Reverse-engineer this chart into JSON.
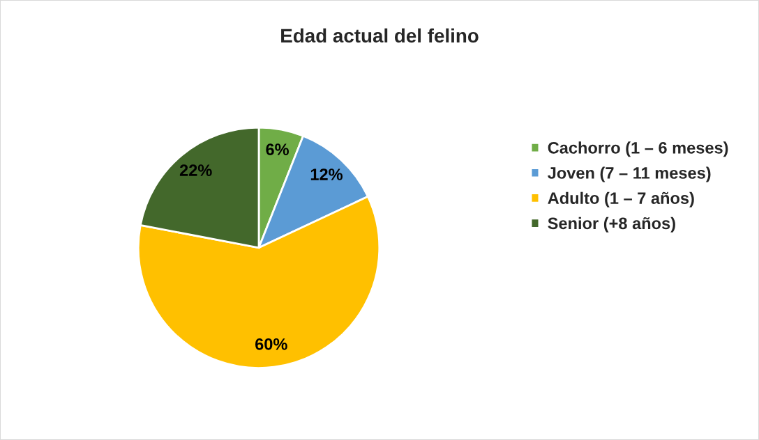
{
  "chart_data": {
    "type": "pie",
    "title": "Edad actual del felino",
    "categories": [
      "Cachorro (1 – 6 meses)",
      "Joven (7 – 11 meses)",
      "Adulto (1 – 7 años)",
      "Senior (+8 años)"
    ],
    "values": [
      6,
      12,
      60,
      22
    ],
    "colors": [
      "#70ad47",
      "#5b9bd5",
      "#ffc000",
      "#43682b"
    ],
    "value_labels": [
      "6%",
      "12%",
      "60%",
      "22%"
    ],
    "legend": "right"
  }
}
